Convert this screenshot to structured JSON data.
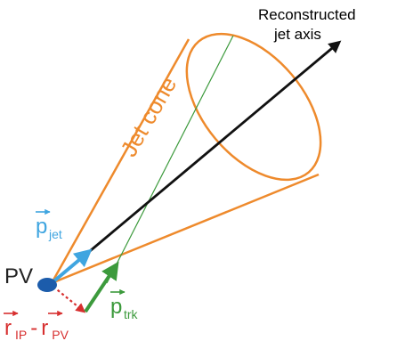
{
  "diagram": {
    "axis_label_line1": "Reconstructed",
    "axis_label_line2": "jet axis",
    "cone_label": "Jet cone",
    "pv_label": "PV",
    "p_jet": {
      "main": "p",
      "sub": "jet"
    },
    "p_trk": {
      "main": "p",
      "sub": "trk"
    },
    "r_ip_pv": {
      "r1": "r",
      "sub1": "IP",
      "minus": "-",
      "r2": "r",
      "sub2": "PV"
    },
    "colors": {
      "cone": "#ee8a2c",
      "axis": "#111111",
      "p_jet": "#3fa5e0",
      "track": "#3c9a3c",
      "ip": "#d72f2f",
      "pv": "#1c5cab"
    },
    "icons": {
      "vector_arrow": "right-arrow-icon"
    }
  }
}
